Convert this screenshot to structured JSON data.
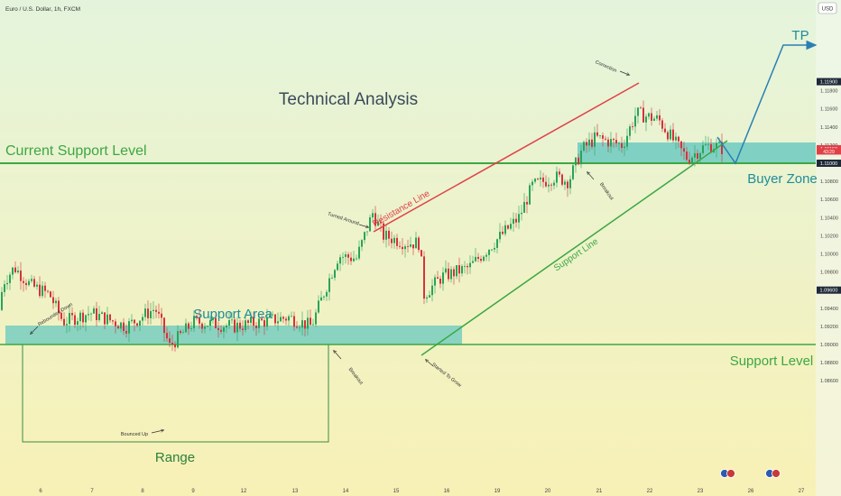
{
  "header": {
    "symbol_title": "Euro / U.S. Dollar, 1h, FXCM",
    "currency_badge": "USD"
  },
  "colors": {
    "bg_top": "#e6f4d8",
    "bg_bottom": "#f7f0b8",
    "candle_up": "#29a35a",
    "candle_down": "#d6323c",
    "zone_fill": "#5cc6bf",
    "support_green": "#3ca744",
    "resistance_red": "#e04048",
    "arrow_blue": "#2a7fb5",
    "label_teal": "#1f8c9a",
    "title_dark": "#3b4a5a"
  },
  "chart_data": {
    "type": "candlestick",
    "instrument": "Euro / U.S. Dollar",
    "timeframe": "1h",
    "source": "FXCM",
    "y_axis": {
      "min": 1.085,
      "max": 1.125,
      "ticks": [
        "1.11800",
        "1.11600",
        "1.11400",
        "1.11200",
        "1.11000",
        "1.10800",
        "1.10600",
        "1.10400",
        "1.10200",
        "1.10000",
        "1.09800",
        "1.09600",
        "1.09400",
        "1.09200",
        "1.09000",
        "1.08800",
        "1.08600"
      ],
      "price_labels": [
        {
          "value": 1.119,
          "text": "1.11900",
          "style": "dark"
        },
        {
          "value": 1.1116,
          "text": "1.11160",
          "style": "red"
        },
        {
          "value": 1.1113,
          "text": "43:29",
          "style": "red-small"
        },
        {
          "value": 1.11,
          "text": "1.11000",
          "style": "dark"
        },
        {
          "value": 1.096,
          "text": "1.09600",
          "style": "dark"
        }
      ]
    },
    "x_axis": {
      "ticks": [
        {
          "day": 6,
          "label": "6"
        },
        {
          "day": 7,
          "label": "7"
        },
        {
          "day": 8,
          "label": "8"
        },
        {
          "day": 9,
          "label": "9"
        },
        {
          "day": 12,
          "label": "12"
        },
        {
          "day": 13,
          "label": "13"
        },
        {
          "day": 14,
          "label": "14"
        },
        {
          "day": 15,
          "label": "15"
        },
        {
          "day": 16,
          "label": "16"
        },
        {
          "day": 19,
          "label": "19"
        },
        {
          "day": 20,
          "label": "20"
        },
        {
          "day": 21,
          "label": "21"
        },
        {
          "day": 22,
          "label": "22"
        },
        {
          "day": 23,
          "label": "23"
        },
        {
          "day": 26,
          "label": "26"
        },
        {
          "day": 27,
          "label": "27"
        }
      ]
    },
    "price_path_keypoints": [
      [
        1.0938,
        0
      ],
      [
        1.0968,
        3
      ],
      [
        1.0985,
        16
      ],
      [
        1.0965,
        34
      ],
      [
        1.0955,
        55
      ],
      [
        1.0925,
        70
      ],
      [
        1.0935,
        100
      ],
      [
        1.092,
        140
      ],
      [
        1.094,
        172
      ],
      [
        1.0898,
        188
      ],
      [
        1.0925,
        215
      ],
      [
        1.092,
        260
      ],
      [
        1.093,
        320
      ],
      [
        1.092,
        345
      ],
      [
        1.0965,
        362
      ],
      [
        1.0998,
        375
      ],
      [
        1.0995,
        395
      ],
      [
        1.1045,
        413
      ],
      [
        1.102,
        425
      ],
      [
        1.1012,
        450
      ],
      [
        1.1012,
        465
      ],
      [
        1.0955,
        470
      ],
      [
        1.0975,
        490
      ],
      [
        1.0985,
        520
      ],
      [
        1.101,
        545
      ],
      [
        1.104,
        575
      ],
      [
        1.1075,
        590
      ],
      [
        1.1085,
        615
      ],
      [
        1.108,
        630
      ],
      [
        1.1115,
        645
      ],
      [
        1.1128,
        660
      ],
      [
        1.112,
        690
      ],
      [
        1.1155,
        705
      ],
      [
        1.1148,
        730
      ],
      [
        1.112,
        750
      ],
      [
        1.1105,
        762
      ],
      [
        1.1118,
        780
      ],
      [
        1.112,
        790
      ],
      [
        1.1116,
        801
      ]
    ],
    "zones": [
      {
        "name": "support-area",
        "from": 1.096,
        "to": 1.0973
      },
      {
        "name": "buyer-zone",
        "from": 1.11,
        "to": 1.1115
      }
    ],
    "levels": [
      {
        "name": "current-support-level",
        "value": 1.11
      },
      {
        "name": "support-level",
        "value": 1.096
      }
    ]
  },
  "annotations": {
    "main_title": "Technical Analysis",
    "current_support_level": "Current Support Level",
    "support_area": "Support Area",
    "support_level": "Support Level",
    "range": "Range",
    "buyer_zone": "Buyer Zone",
    "tp": "TP",
    "resistance_line": "Resistance Line",
    "support_line": "Support Line",
    "rebounded_down": "Rebounded Down",
    "bounced_up": "Bounced Up",
    "breakout_1": "Breakout",
    "turned_around": "Turned Around",
    "started_to_grow": "Started To Grow",
    "breakout_2": "Breakout",
    "correction": "Correction"
  }
}
